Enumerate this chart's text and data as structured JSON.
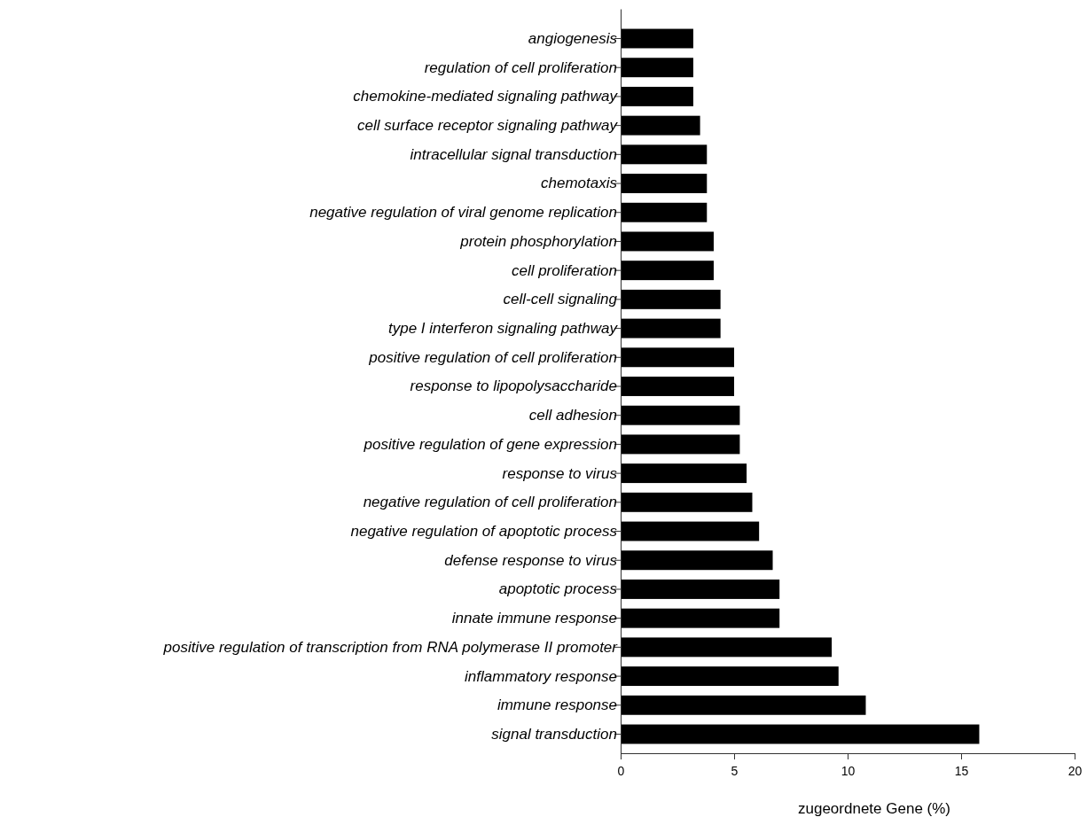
{
  "chart_data": {
    "type": "bar",
    "orientation": "horizontal",
    "xlabel": "zugeordnete Gene (%)",
    "categories": [
      "angiogenesis",
      "regulation of cell proliferation",
      "chemokine-mediated signaling pathway",
      "cell surface receptor signaling pathway",
      "intracellular signal transduction",
      "chemotaxis",
      "negative regulation of viral genome replication",
      "protein phosphorylation",
      "cell proliferation",
      "cell-cell signaling",
      "type I interferon signaling pathway",
      "positive regulation of cell proliferation",
      "response to lipopolysaccharide",
      "cell adhesion",
      "positive regulation of gene expression",
      "response to virus",
      "negative regulation of cell proliferation",
      "negative regulation of apoptotic process",
      "defense response to virus",
      "apoptotic process",
      "innate immune response",
      "positive regulation of transcription from RNA polymerase II promoter",
      "inflammatory response",
      "immune response",
      "signal transduction"
    ],
    "values": [
      3.2,
      3.2,
      3.2,
      3.5,
      3.8,
      3.8,
      3.8,
      4.1,
      4.1,
      4.4,
      4.4,
      5.0,
      5.0,
      5.25,
      5.25,
      5.55,
      5.8,
      6.1,
      6.7,
      7.0,
      7.0,
      9.3,
      9.6,
      10.8,
      15.8
    ],
    "color": "#000000",
    "xlim": [
      0,
      20
    ],
    "xticks": [
      0,
      5,
      10,
      15,
      20
    ]
  }
}
